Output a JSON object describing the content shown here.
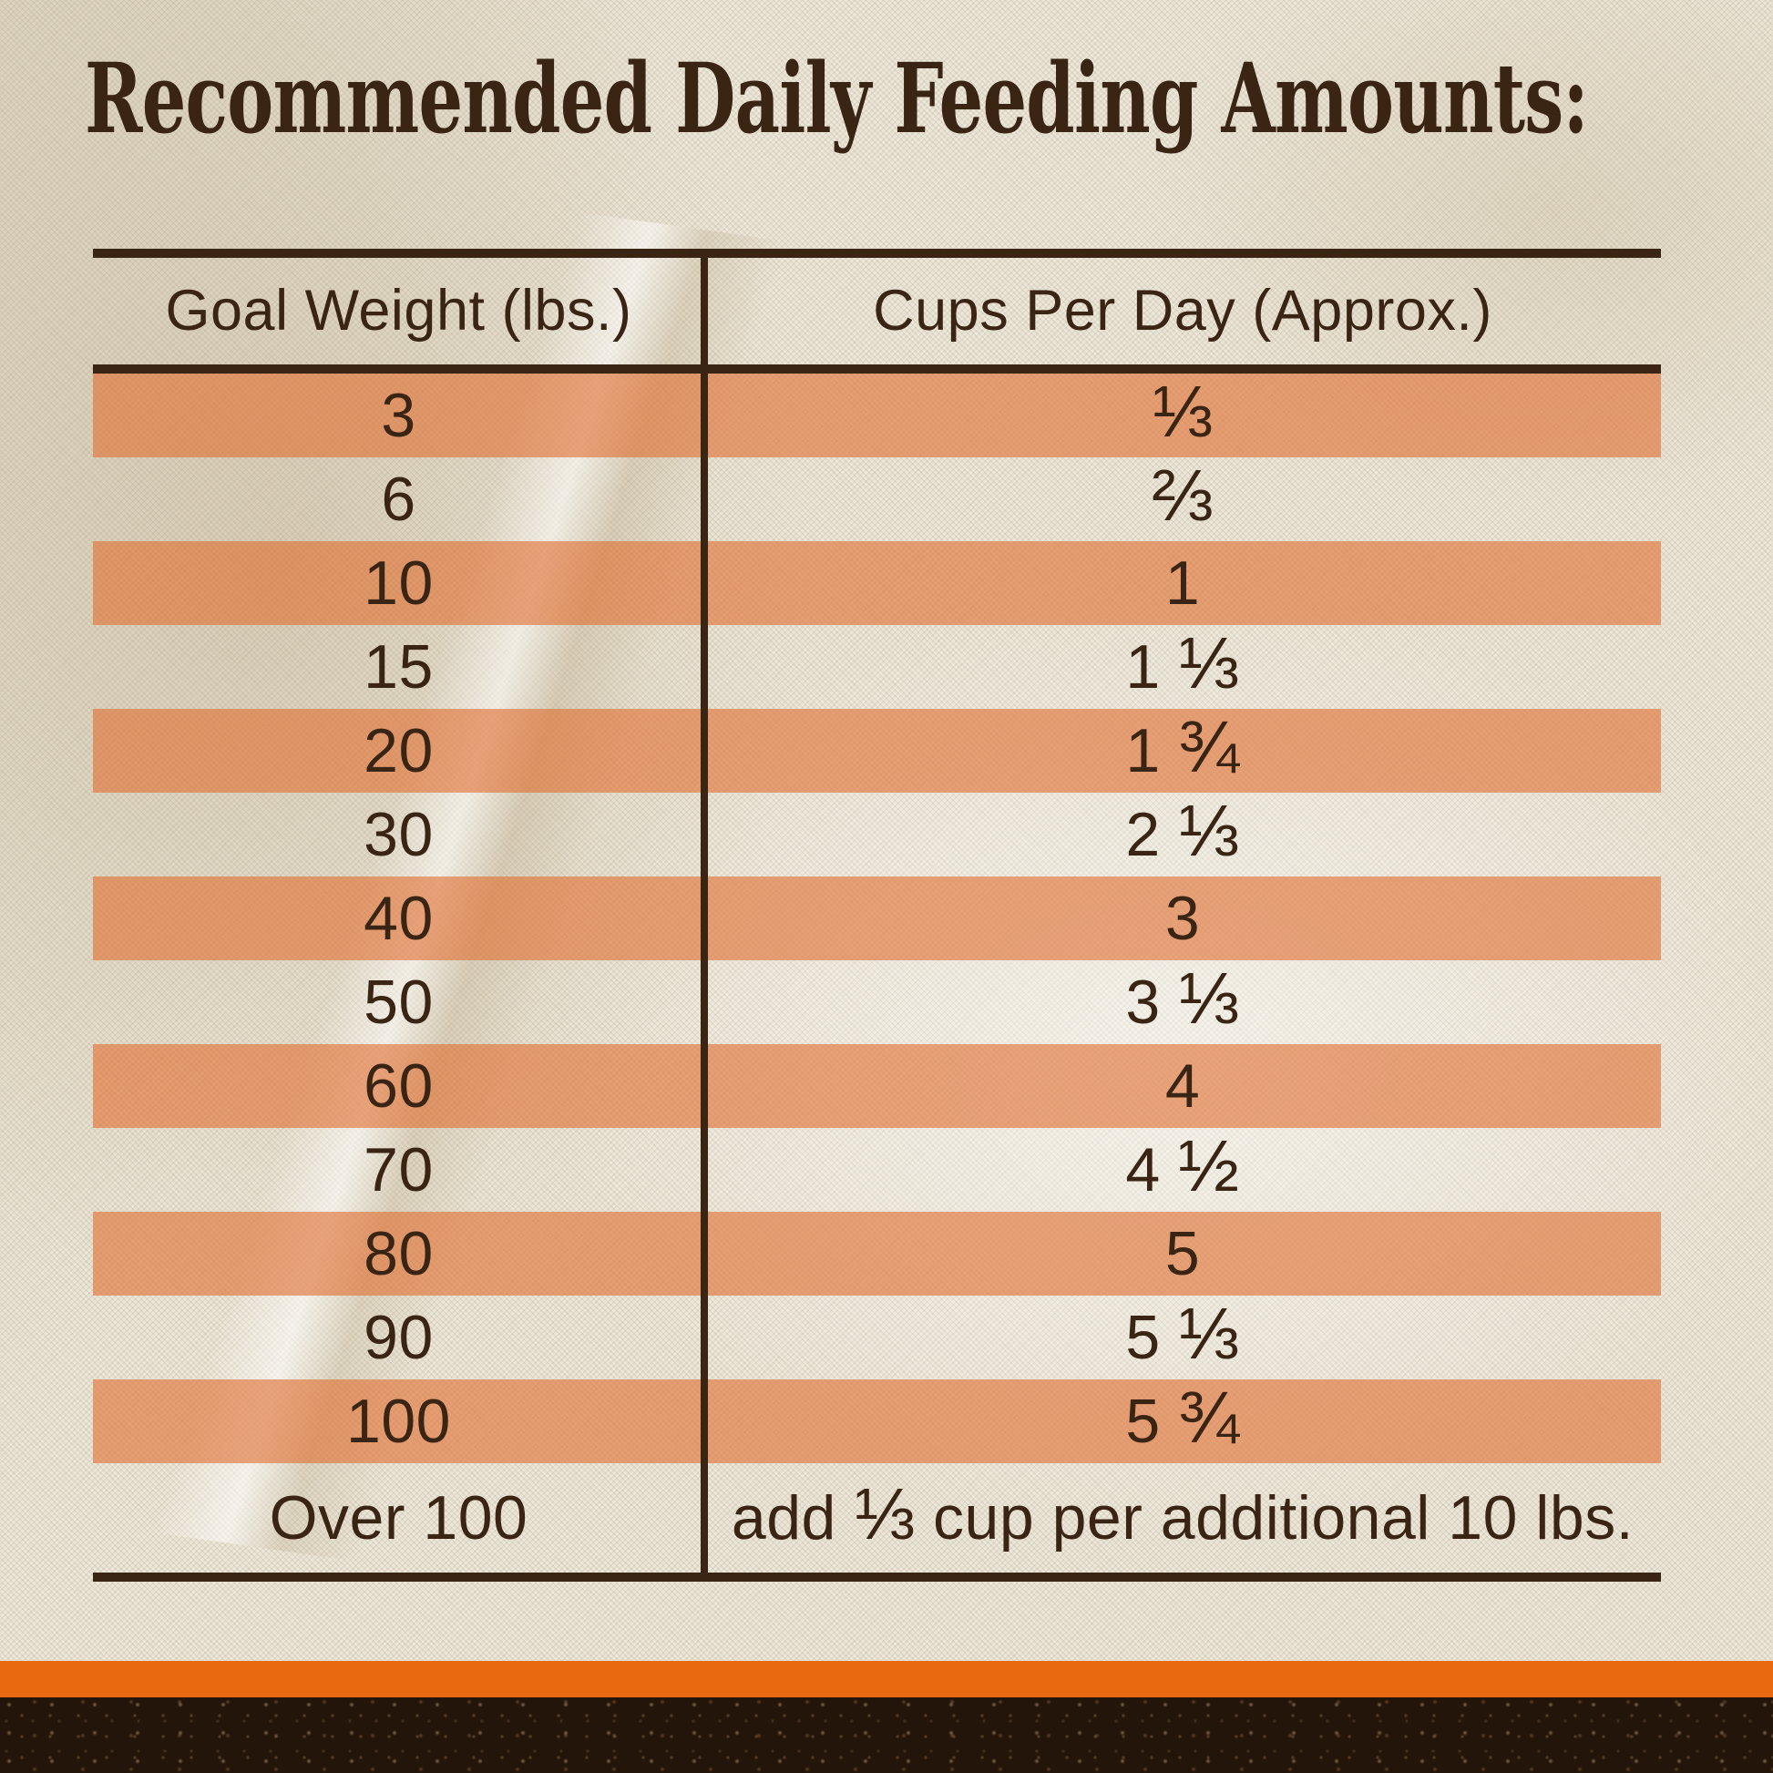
{
  "title": "Recommended Daily Feeding Amounts:",
  "colors": {
    "ink": "#3a2414",
    "stripe_overlay": "rgba(224,113,51,0.62)",
    "stripe_effective": "#e79c70",
    "fabric": "#e9e3d3",
    "bottom_bar": "#e8690f",
    "soil": "#231509"
  },
  "chart_data": {
    "type": "table",
    "title": "Recommended Daily Feeding Amounts:",
    "columns": [
      "Goal Weight (lbs.)",
      "Cups Per Day (Approx.)"
    ],
    "rows": [
      {
        "weight": "3",
        "cups": "⅓",
        "striped": true,
        "tall": false
      },
      {
        "weight": "6",
        "cups": "⅔",
        "striped": false,
        "tall": false
      },
      {
        "weight": "10",
        "cups": "1",
        "striped": true,
        "tall": false
      },
      {
        "weight": "15",
        "cups": "1 ⅓",
        "striped": false,
        "tall": false
      },
      {
        "weight": "20",
        "cups": "1 ¾",
        "striped": true,
        "tall": false
      },
      {
        "weight": "30",
        "cups": "2 ⅓",
        "striped": false,
        "tall": false
      },
      {
        "weight": "40",
        "cups": "3",
        "striped": true,
        "tall": false
      },
      {
        "weight": "50",
        "cups": "3 ⅓",
        "striped": false,
        "tall": false
      },
      {
        "weight": "60",
        "cups": "4",
        "striped": true,
        "tall": false
      },
      {
        "weight": "70",
        "cups": "4 ½",
        "striped": false,
        "tall": false
      },
      {
        "weight": "80",
        "cups": "5",
        "striped": true,
        "tall": false
      },
      {
        "weight": "90",
        "cups": "5 ⅓",
        "striped": false,
        "tall": false
      },
      {
        "weight": "100",
        "cups": "5 ¾",
        "striped": true,
        "tall": false
      },
      {
        "weight": "Over 100",
        "cups": "add ⅓ cup per additional 10 lbs.",
        "striped": false,
        "tall": true
      }
    ],
    "layout": {
      "row_highlight": "alternating starting with first data row",
      "grid": "outer horizontal rules top/bottom, one vertical column divider"
    }
  }
}
